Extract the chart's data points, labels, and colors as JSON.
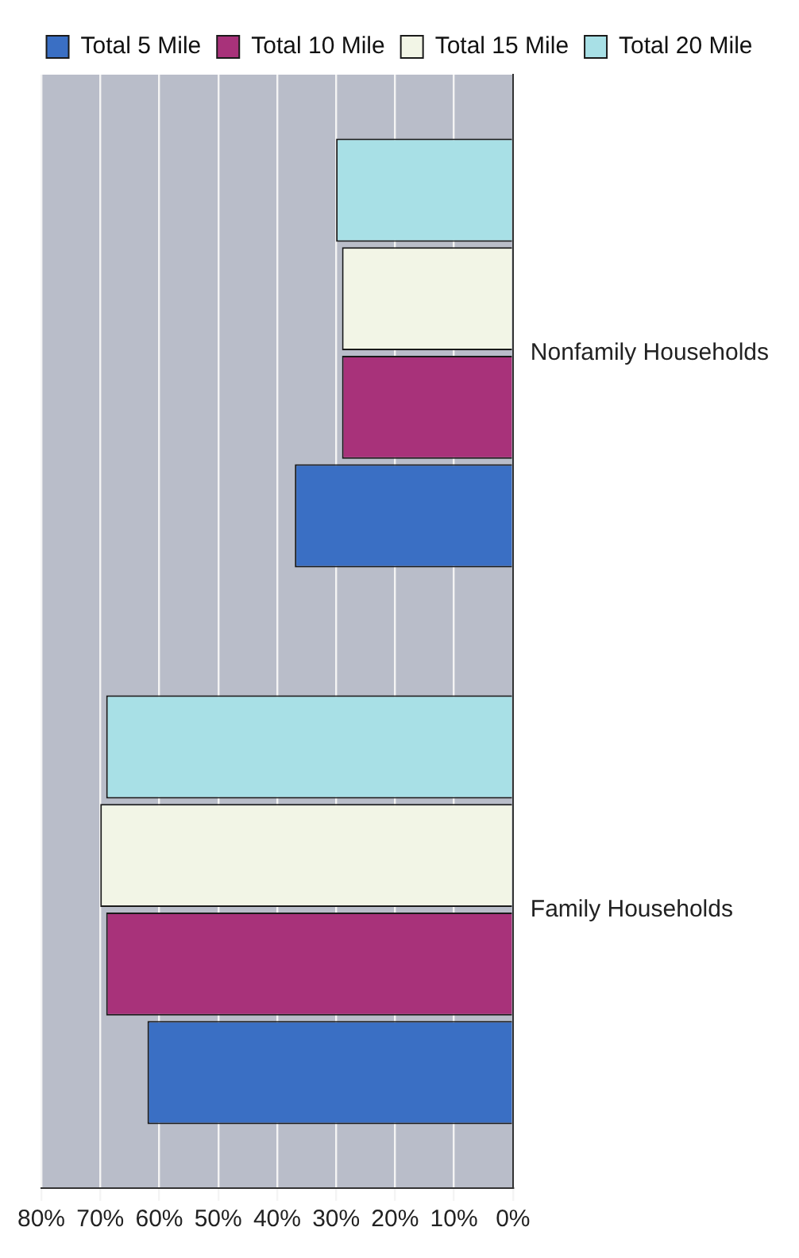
{
  "chart_data": {
    "type": "bar",
    "orientation": "horizontal",
    "categories": [
      "Nonfamily Households",
      "Family Households"
    ],
    "series": [
      {
        "name": "Total 5 Mile",
        "color": "#3a6fc4",
        "values": [
          37,
          62
        ]
      },
      {
        "name": "Total 10 Mile",
        "color": "#a8327a",
        "values": [
          29,
          69
        ]
      },
      {
        "name": "Total 15 Mile",
        "color": "#f2f5e6",
        "values": [
          29,
          70
        ]
      },
      {
        "name": "Total 20 Mile",
        "color": "#a8e0e6",
        "values": [
          30,
          69
        ]
      }
    ],
    "xlim": [
      80,
      0
    ],
    "xticks": [
      {
        "value": 80,
        "label": "80%"
      },
      {
        "value": 70,
        "label": "70%"
      },
      {
        "value": 60,
        "label": "60%"
      },
      {
        "value": 50,
        "label": "50%"
      },
      {
        "value": 40,
        "label": "40%"
      },
      {
        "value": 30,
        "label": "30%"
      },
      {
        "value": 20,
        "label": "20%"
      },
      {
        "value": 10,
        "label": "10%"
      },
      {
        "value": 0,
        "label": "0%"
      }
    ],
    "grid": "x",
    "legend": "top"
  }
}
